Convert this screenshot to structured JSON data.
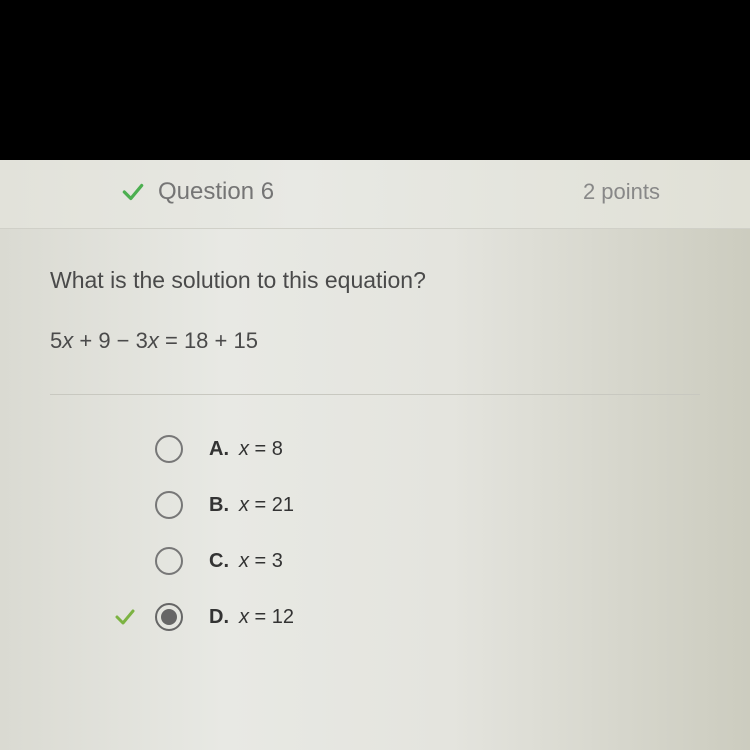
{
  "header": {
    "check_color": "#4caf50",
    "title": "Question 6",
    "points": "2 points"
  },
  "question": {
    "prompt": "What is the solution to this equation?",
    "equation_lhs_a": "5",
    "equation_lhs_b": " + 9 − 3",
    "equation_lhs_c": " = 18 + 15"
  },
  "options": [
    {
      "letter": "A.",
      "var": "x",
      "rest": " = 8",
      "selected": false,
      "correct": false
    },
    {
      "letter": "B.",
      "var": "x",
      "rest": " = 21",
      "selected": false,
      "correct": false
    },
    {
      "letter": "C.",
      "var": "x",
      "rest": " = 3",
      "selected": false,
      "correct": false
    },
    {
      "letter": "D.",
      "var": "x",
      "rest": " = 12",
      "selected": true,
      "correct": true
    }
  ],
  "colors": {
    "correct_check": "#7cb342"
  }
}
